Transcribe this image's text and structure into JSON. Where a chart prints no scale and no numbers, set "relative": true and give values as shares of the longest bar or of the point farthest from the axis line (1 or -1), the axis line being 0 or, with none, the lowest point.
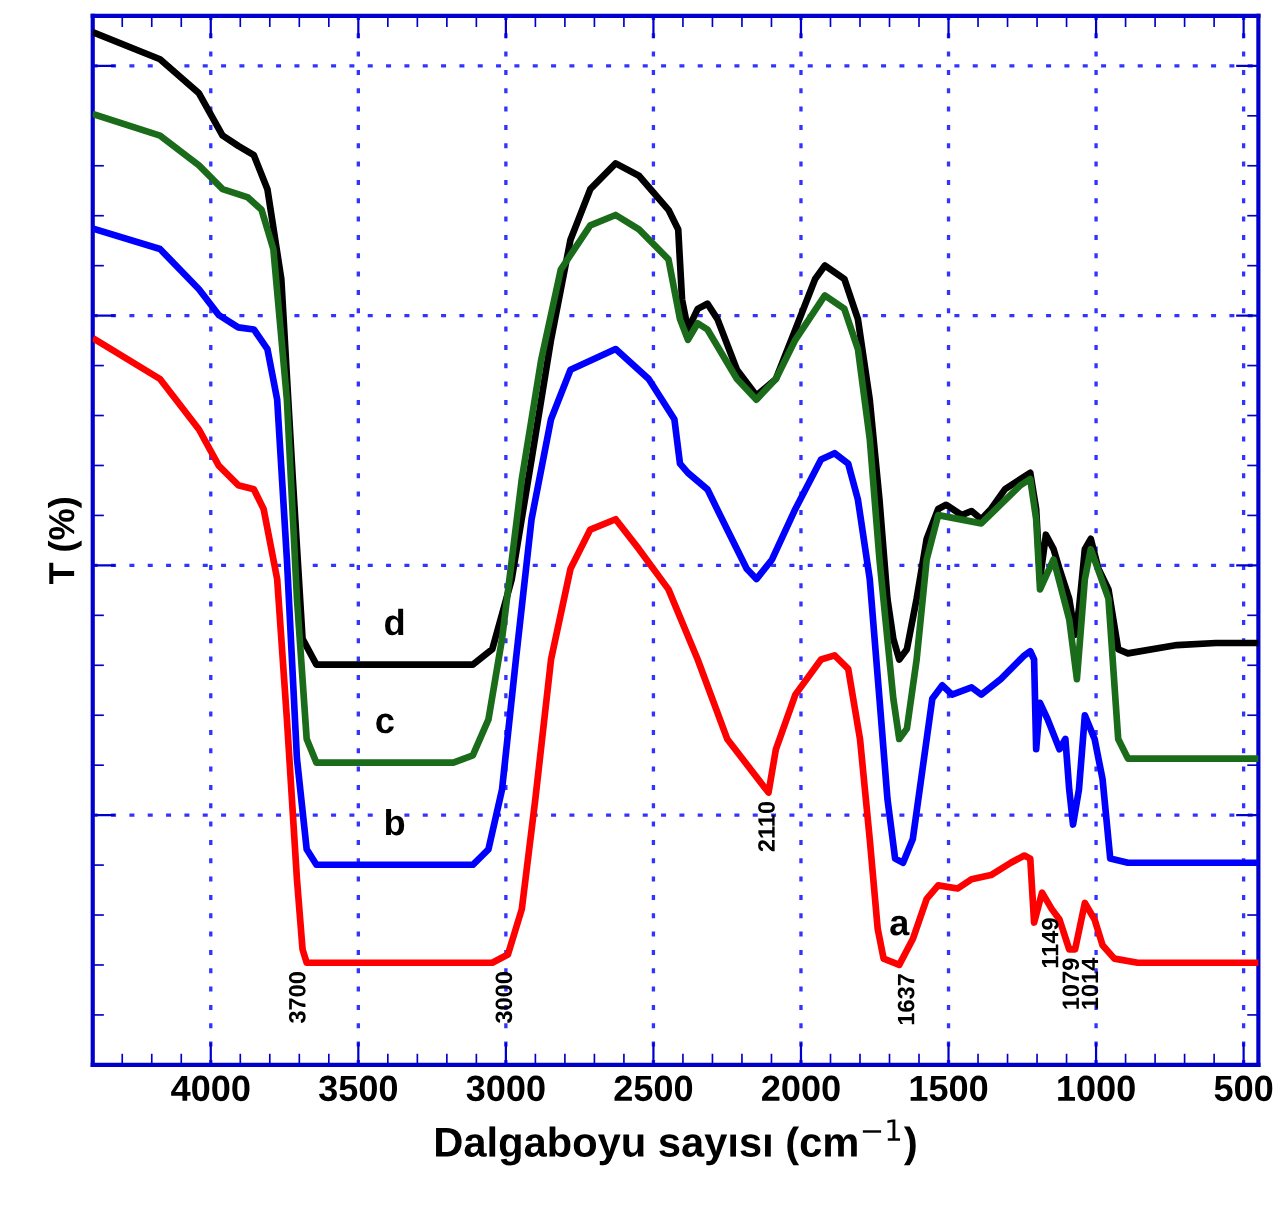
{
  "chart_data": {
    "type": "line",
    "relative": true,
    "xlabel": "Dalgaboyu sayısı (cm$^{−1}$)",
    "ylabel": "T (%)",
    "xlim": [
      4400,
      450
    ],
    "xticks": [
      4000,
      3500,
      3000,
      2500,
      2000,
      1500,
      1000,
      500
    ],
    "grid": true,
    "legend": false,
    "marker": "none",
    "line_style": "solid",
    "series": [
      {
        "name": "d",
        "color": "#000000",
        "x": [
          4390,
          4172,
          4040,
          3960,
          3907,
          3854,
          3808,
          3761,
          3722,
          3689,
          3642,
          3112,
          3046,
          2980,
          2913,
          2847,
          2781,
          2714,
          2628,
          2549,
          2449,
          2416,
          2403,
          2383,
          2350,
          2317,
          2283,
          2217,
          2151,
          2085,
          2019,
          1952,
          1919,
          1853,
          1807,
          1767,
          1734,
          1707,
          1687,
          1667,
          1641,
          1608,
          1574,
          1535,
          1508,
          1455,
          1422,
          1389,
          1356,
          1309,
          1256,
          1223,
          1203,
          1190,
          1170,
          1144,
          1124,
          1091,
          1071,
          1058,
          1038,
          1018,
          992,
          958,
          925,
          892,
          726,
          594,
          455
        ],
        "values": [
          1.0,
          0.975,
          0.942,
          0.901,
          0.891,
          0.882,
          0.849,
          0.762,
          0.568,
          0.413,
          0.388,
          0.388,
          0.403,
          0.471,
          0.587,
          0.703,
          0.8,
          0.849,
          0.874,
          0.862,
          0.829,
          0.81,
          0.742,
          0.713,
          0.733,
          0.738,
          0.723,
          0.674,
          0.649,
          0.665,
          0.713,
          0.762,
          0.775,
          0.762,
          0.723,
          0.645,
          0.548,
          0.452,
          0.413,
          0.393,
          0.403,
          0.452,
          0.51,
          0.539,
          0.543,
          0.533,
          0.537,
          0.529,
          0.539,
          0.558,
          0.568,
          0.574,
          0.539,
          0.471,
          0.514,
          0.5,
          0.481,
          0.452,
          0.417,
          0.442,
          0.5,
          0.51,
          0.481,
          0.461,
          0.403,
          0.399,
          0.407,
          0.409,
          0.409
        ]
      },
      {
        "name": "c",
        "color": "#1a6b1a",
        "x": [
          4390,
          4172,
          4040,
          3960,
          3874,
          3828,
          3788,
          3742,
          3708,
          3675,
          3642,
          3178,
          3112,
          3059,
          3013,
          2946,
          2880,
          2814,
          2714,
          2628,
          2549,
          2449,
          2410,
          2383,
          2350,
          2317,
          2217,
          2151,
          2085,
          2019,
          1919,
          1853,
          1807,
          1767,
          1734,
          1687,
          1667,
          1641,
          1608,
          1574,
          1535,
          1389,
          1256,
          1223,
          1203,
          1190,
          1144,
          1091,
          1065,
          1038,
          1018,
          958,
          925,
          892,
          455
        ],
        "values": [
          0.921,
          0.901,
          0.872,
          0.849,
          0.841,
          0.829,
          0.791,
          0.645,
          0.452,
          0.316,
          0.293,
          0.293,
          0.3,
          0.335,
          0.413,
          0.568,
          0.684,
          0.771,
          0.814,
          0.824,
          0.81,
          0.781,
          0.723,
          0.703,
          0.719,
          0.713,
          0.665,
          0.645,
          0.665,
          0.703,
          0.746,
          0.733,
          0.694,
          0.607,
          0.49,
          0.355,
          0.316,
          0.326,
          0.393,
          0.49,
          0.533,
          0.525,
          0.562,
          0.568,
          0.529,
          0.461,
          0.49,
          0.432,
          0.374,
          0.471,
          0.5,
          0.452,
          0.316,
          0.297,
          0.297
        ]
      },
      {
        "name": "b",
        "color": "#0000ff",
        "x": [
          4390,
          4172,
          4040,
          3973,
          3907,
          3854,
          3808,
          3775,
          3742,
          3708,
          3675,
          3642,
          3112,
          3059,
          3013,
          2966,
          2913,
          2847,
          2781,
          2628,
          2516,
          2429,
          2410,
          2383,
          2317,
          2250,
          2184,
          2151,
          2098,
          2019,
          1932,
          1886,
          1840,
          1807,
          1767,
          1734,
          1707,
          1681,
          1654,
          1621,
          1588,
          1555,
          1521,
          1488,
          1422,
          1389,
          1323,
          1243,
          1223,
          1210,
          1203,
          1190,
          1164,
          1124,
          1104,
          1091,
          1078,
          1058,
          1038,
          1005,
          978,
          952,
          892,
          455
        ],
        "values": [
          0.81,
          0.791,
          0.752,
          0.727,
          0.715,
          0.713,
          0.694,
          0.645,
          0.49,
          0.297,
          0.209,
          0.194,
          0.194,
          0.209,
          0.267,
          0.393,
          0.529,
          0.626,
          0.674,
          0.694,
          0.665,
          0.626,
          0.583,
          0.574,
          0.558,
          0.519,
          0.481,
          0.471,
          0.49,
          0.539,
          0.587,
          0.593,
          0.583,
          0.548,
          0.471,
          0.355,
          0.258,
          0.2,
          0.196,
          0.219,
          0.287,
          0.355,
          0.368,
          0.359,
          0.366,
          0.359,
          0.374,
          0.397,
          0.401,
          0.393,
          0.306,
          0.351,
          0.335,
          0.306,
          0.316,
          0.267,
          0.233,
          0.267,
          0.339,
          0.316,
          0.277,
          0.2,
          0.196,
          0.196
        ]
      },
      {
        "name": "a",
        "color": "#ff0000",
        "x": [
          4390,
          4172,
          4040,
          3973,
          3907,
          3854,
          3821,
          3775,
          3742,
          3708,
          3689,
          3675,
          3046,
          2993,
          2946,
          2900,
          2847,
          2781,
          2714,
          2628,
          2549,
          2449,
          2350,
          2250,
          2110,
          2085,
          2019,
          1932,
          1886,
          1840,
          1800,
          1767,
          1740,
          1720,
          1667,
          1621,
          1574,
          1535,
          1469,
          1422,
          1356,
          1289,
          1243,
          1223,
          1210,
          1183,
          1150,
          1124,
          1091,
          1071,
          1038,
          1005,
          978,
          938,
          859,
          455
        ],
        "values": [
          0.703,
          0.665,
          0.616,
          0.581,
          0.562,
          0.558,
          0.539,
          0.471,
          0.335,
          0.18,
          0.112,
          0.099,
          0.099,
          0.107,
          0.151,
          0.258,
          0.393,
          0.481,
          0.519,
          0.529,
          0.5,
          0.461,
          0.393,
          0.316,
          0.264,
          0.306,
          0.359,
          0.393,
          0.397,
          0.384,
          0.316,
          0.219,
          0.132,
          0.103,
          0.097,
          0.122,
          0.161,
          0.174,
          0.171,
          0.18,
          0.184,
          0.196,
          0.203,
          0.2,
          0.138,
          0.167,
          0.151,
          0.141,
          0.112,
          0.112,
          0.157,
          0.141,
          0.116,
          0.103,
          0.099,
          0.099
        ]
      }
    ],
    "annotations": [
      {
        "text": "3700",
        "x": 3700,
        "y": 0.099
      },
      {
        "text": "3000",
        "x": 3000,
        "y": 0.099
      },
      {
        "text": "2110",
        "x": 2110,
        "y": 0.264
      },
      {
        "text": "1637",
        "x": 1637,
        "y": 0.097
      },
      {
        "text": "1149",
        "x": 1149,
        "y": 0.151
      },
      {
        "text": "1079",
        "x": 1079,
        "y": 0.112
      },
      {
        "text": "1014",
        "x": 1014,
        "y": 0.112
      }
    ]
  }
}
